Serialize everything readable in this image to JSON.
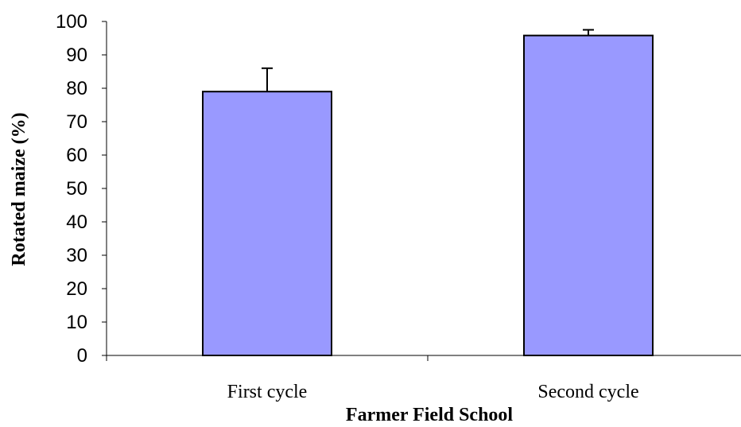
{
  "chart_data": {
    "type": "bar",
    "categories": [
      "First cycle",
      "Second cycle"
    ],
    "values": [
      79,
      95.8
    ],
    "error_plus": [
      7,
      1.7
    ],
    "xlabel": "Farmer Field School",
    "ylabel": "Rotated maize (%)",
    "ylim": [
      0,
      100
    ],
    "yticks": [
      "0",
      "10",
      "20",
      "30",
      "40",
      "50",
      "60",
      "70",
      "80",
      "90",
      "100"
    ],
    "grid": false,
    "bar_color": "#9999FF",
    "bar_edge_color": "#000000"
  }
}
